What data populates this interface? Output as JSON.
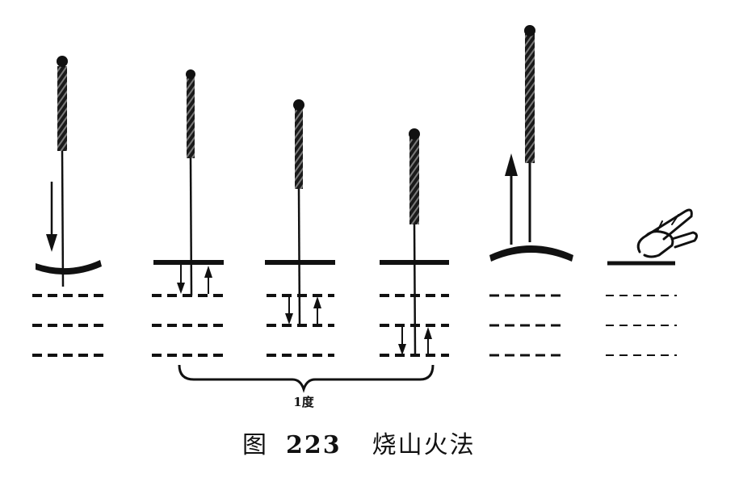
{
  "figure": {
    "degree_label": "1度",
    "caption_prefix": "图",
    "caption_number": "223",
    "caption_title": "烧山火法"
  },
  "colors": {
    "ink": "#111111",
    "paper": "#ffffff"
  },
  "icons": [
    "needle-icon",
    "arrow-down-icon",
    "arrow-up-icon",
    "finger-pressing-icon"
  ]
}
